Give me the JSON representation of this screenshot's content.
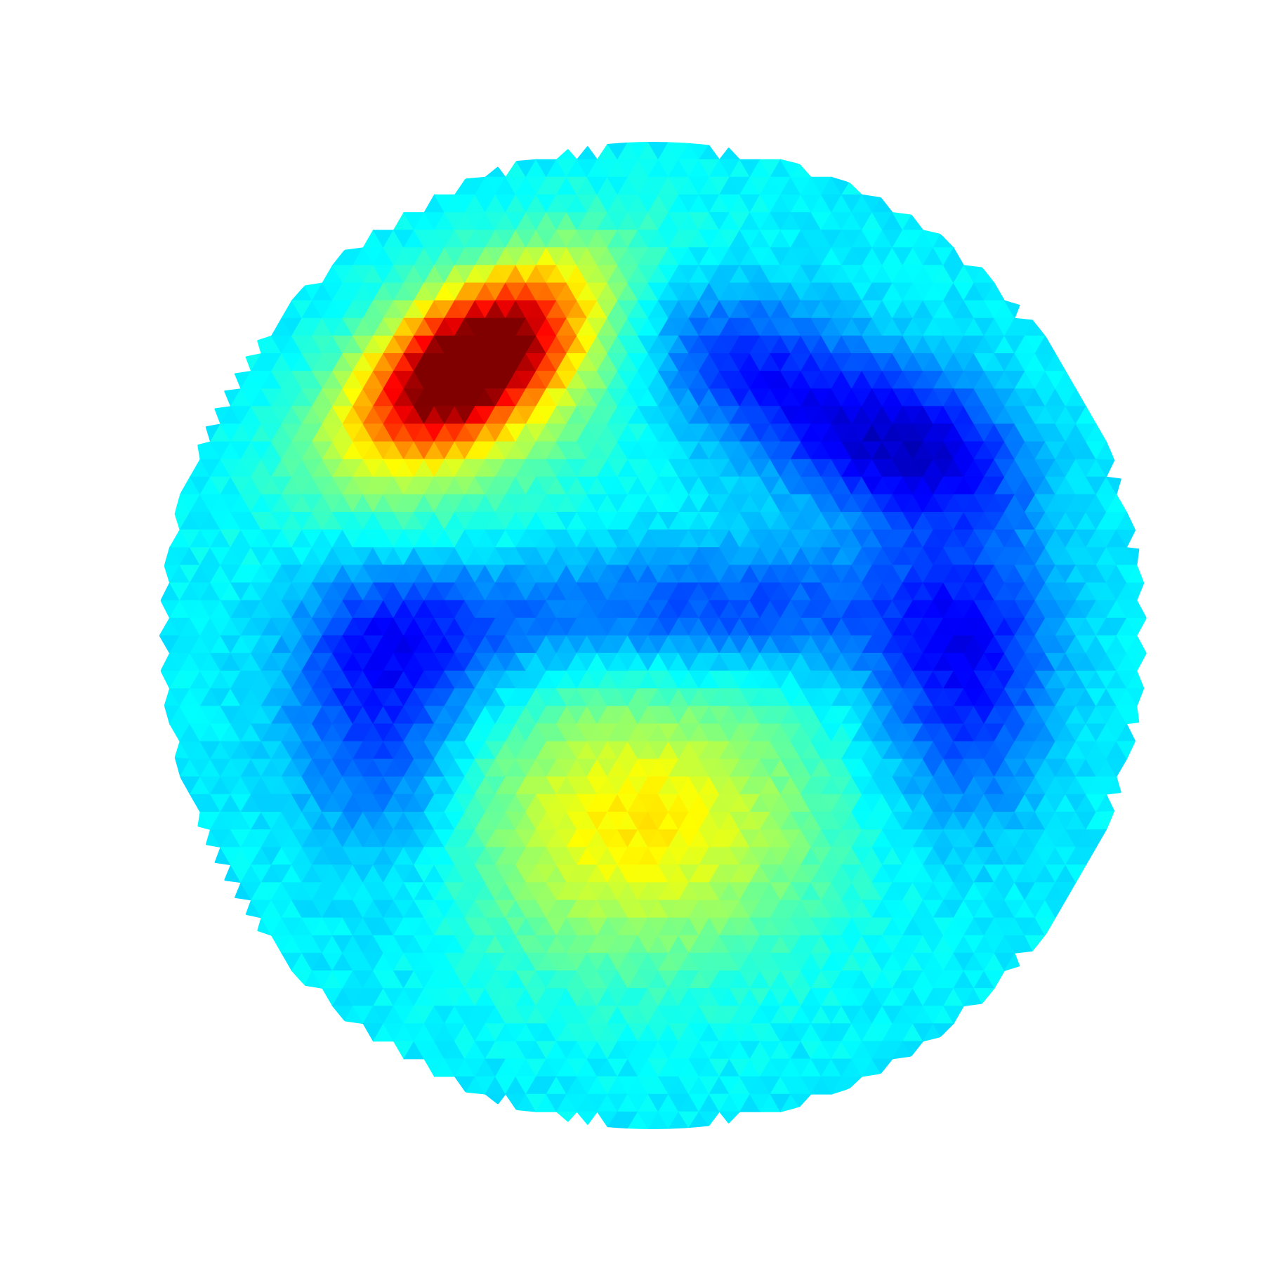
{
  "chart_data": {
    "type": "heatmap",
    "subtype": "triangulated-mesh-on-disk",
    "title": "",
    "xlabel": "",
    "ylabel": "",
    "xlim": [
      -1,
      1
    ],
    "ylim": [
      -1,
      1
    ],
    "aspect": "equal",
    "axes_visible": false,
    "grid": false,
    "legend": "none",
    "colorbar": false,
    "colormap": "jet",
    "colormap_stops": [
      "#00008f",
      "#0000ff",
      "#00ffff",
      "#ffff00",
      "#ff0000",
      "#800000"
    ],
    "value_range": [
      0,
      1
    ],
    "background_value": 0.36,
    "features": [
      {
        "name": "hot-spot",
        "x": -0.37,
        "y": 0.55,
        "sx": 0.17,
        "sy": 0.09,
        "angle_deg": 35,
        "amplitude": 0.62
      },
      {
        "name": "hot-spot-halo",
        "x": -0.35,
        "y": 0.52,
        "sx": 0.3,
        "sy": 0.17,
        "angle_deg": 35,
        "amplitude": 0.2
      },
      {
        "name": "warm-spot",
        "x": -0.03,
        "y": -0.38,
        "sx": 0.26,
        "sy": 0.2,
        "angle_deg": 0,
        "amplitude": 0.28
      },
      {
        "name": "cold-region-east",
        "x": 0.52,
        "y": 0.38,
        "sx": 0.17,
        "sy": 0.11,
        "angle_deg": -15,
        "amplitude": -0.27
      },
      {
        "name": "cold-region-northeast",
        "x": 0.18,
        "y": 0.55,
        "sx": 0.18,
        "sy": 0.11,
        "angle_deg": -25,
        "amplitude": -0.2
      },
      {
        "name": "cold-region-center",
        "x": 0.12,
        "y": 0.05,
        "sx": 0.32,
        "sy": 0.09,
        "angle_deg": 0,
        "amplitude": -0.18
      },
      {
        "name": "cold-region-southeast",
        "x": 0.63,
        "y": -0.08,
        "sx": 0.13,
        "sy": 0.2,
        "angle_deg": 0,
        "amplitude": -0.22
      },
      {
        "name": "cold-region-west",
        "x": -0.56,
        "y": -0.15,
        "sx": 0.13,
        "sy": 0.22,
        "angle_deg": 10,
        "amplitude": -0.2
      },
      {
        "name": "cold-region-west-center",
        "x": -0.42,
        "y": 0.0,
        "sx": 0.14,
        "sy": 0.1,
        "angle_deg": 0,
        "amplitude": -0.12
      }
    ]
  }
}
